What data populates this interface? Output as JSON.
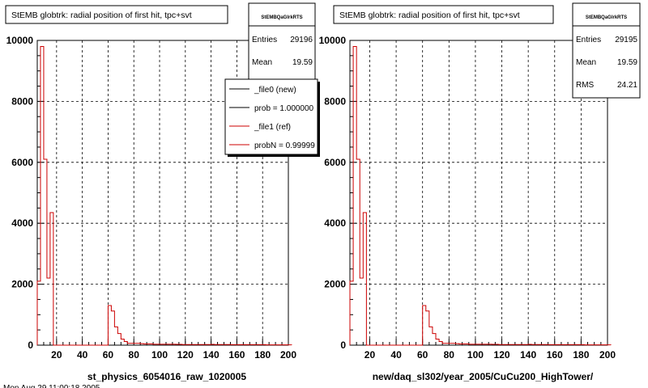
{
  "chart_data": [
    {
      "type": "bar",
      "title": "StEMB globtrk: radial position of first hit, tpc+svt",
      "xlabel": "st_physics_6054016_raw_1020005",
      "xlim": [
        5,
        200
      ],
      "ylim": [
        0,
        10000
      ],
      "x_ticks": [
        "20",
        "40",
        "60",
        "80",
        "100",
        "120",
        "140",
        "160",
        "180",
        "200"
      ],
      "y_ticks": [
        "0",
        "2000",
        "4000",
        "6000",
        "8000",
        "10000"
      ],
      "grid": true,
      "stats": {
        "name": "StEMBQaGlrkRTS",
        "rows": [
          {
            "label": "Entries",
            "value": "29196"
          },
          {
            "label": "Mean",
            "value": "19.59"
          }
        ]
      },
      "legend": [
        {
          "label": "_file0 (new)",
          "color": "#000000"
        },
        {
          "label": "prob = 1.000000",
          "color": "#000000"
        },
        {
          "label": "_file1 (ref)",
          "color": "#cc0000"
        },
        {
          "label": "probN = 0.99999",
          "color": "#cc0000"
        }
      ],
      "legend_position": "top-right",
      "bin_width": 2.5,
      "x_start": 5,
      "series": [
        {
          "name": "_file1 (ref)",
          "color": "#cc0000",
          "values": [
            2100,
            9800,
            6100,
            2200,
            4350,
            0,
            0,
            0,
            0,
            0,
            0,
            0,
            0,
            0,
            0,
            0,
            0,
            0,
            0,
            0,
            0,
            0,
            1300,
            1120,
            600,
            380,
            200,
            120,
            60,
            60,
            60,
            60,
            50,
            40,
            40,
            40,
            30,
            30,
            30,
            30,
            30,
            30,
            30,
            25,
            25,
            20,
            20,
            20,
            20,
            20,
            20,
            20,
            20,
            20,
            25,
            20,
            20,
            20,
            20,
            20,
            15,
            15,
            15,
            15,
            15,
            15,
            15,
            15,
            15,
            15,
            15,
            10,
            10,
            10,
            10,
            10,
            10,
            10,
            10
          ]
        }
      ]
    },
    {
      "type": "bar",
      "title": "StEMB globtrk: radial position of first hit, tpc+svt",
      "xlabel": "new/daq_sl302/year_2005/CuCu200_HighTower/",
      "xlim": [
        5,
        200
      ],
      "ylim": [
        0,
        10000
      ],
      "x_ticks": [
        "20",
        "40",
        "60",
        "80",
        "100",
        "120",
        "140",
        "160",
        "180",
        "200"
      ],
      "y_ticks": [
        "0",
        "2000",
        "4000",
        "6000",
        "8000",
        "10000"
      ],
      "grid": true,
      "stats": {
        "name": "StEMBQaGlrkRTS",
        "rows": [
          {
            "label": "Entries",
            "value": "29195"
          },
          {
            "label": "Mean",
            "value": "19.59"
          },
          {
            "label": "RMS",
            "value": "24.21"
          }
        ]
      },
      "bin_width": 2.5,
      "x_start": 5,
      "series": [
        {
          "name": "",
          "color": "#cc0000",
          "values": [
            2100,
            9800,
            6100,
            2200,
            4350,
            0,
            0,
            0,
            0,
            0,
            0,
            0,
            0,
            0,
            0,
            0,
            0,
            0,
            0,
            0,
            0,
            0,
            1300,
            1120,
            600,
            380,
            200,
            120,
            60,
            60,
            60,
            60,
            50,
            40,
            40,
            40,
            30,
            30,
            30,
            30,
            30,
            30,
            30,
            25,
            25,
            20,
            20,
            20,
            20,
            20,
            20,
            20,
            20,
            20,
            25,
            20,
            20,
            20,
            20,
            20,
            15,
            15,
            15,
            15,
            15,
            15,
            15,
            15,
            15,
            15,
            15,
            10,
            10,
            10,
            10,
            10,
            10,
            10,
            10
          ]
        }
      ]
    }
  ],
  "footer_text": "Mon Aug 29 11:00:18 2005"
}
